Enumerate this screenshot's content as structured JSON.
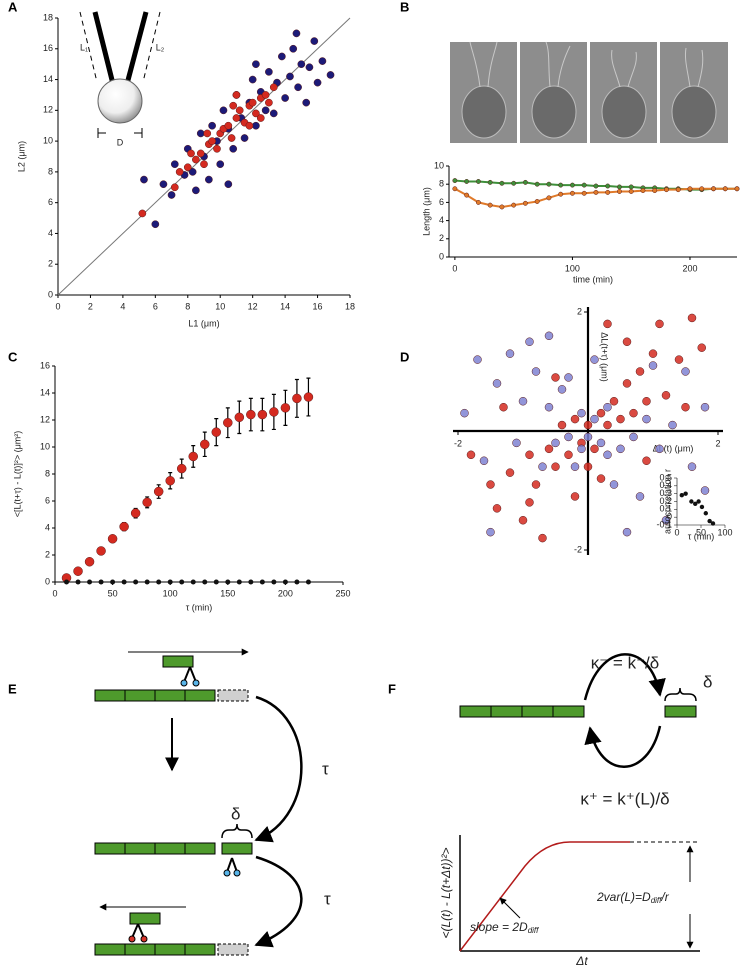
{
  "panel_labels": [
    "A",
    "B",
    "C",
    "D",
    "E",
    "F"
  ],
  "chart_data": [
    {
      "type": "scatter",
      "x_label": "L1 (μm)",
      "y_label": "L2 (μm)",
      "xlim": [
        0,
        18
      ],
      "ylim": [
        0,
        18
      ],
      "xticks": [
        0,
        2,
        4,
        6,
        8,
        10,
        12,
        14,
        16,
        18
      ],
      "yticks": [
        0,
        2,
        4,
        6,
        8,
        10,
        12,
        14,
        16,
        18
      ],
      "diagonal": true,
      "annotations": [
        "L₁",
        "L₂",
        "D"
      ],
      "series": [
        {
          "color": "#1c1a78",
          "x": [
            6.5,
            7.0,
            7.2,
            7.8,
            8.0,
            8.3,
            8.5,
            8.8,
            9.0,
            9.3,
            9.5,
            9.8,
            10.0,
            10.2,
            10.5,
            10.8,
            11.0,
            11.3,
            11.5,
            11.8,
            12.0,
            12.2,
            12.5,
            12.8,
            13.0,
            13.3,
            13.5,
            13.8,
            14.0,
            14.3,
            14.5,
            14.8,
            15.0,
            15.3,
            15.5,
            15.8,
            16.0,
            16.3,
            16.8,
            6.0,
            5.3,
            10.5,
            14.7,
            12.2
          ],
          "values": [
            7.2,
            6.5,
            8.5,
            7.8,
            9.5,
            8.0,
            6.8,
            10.5,
            9.0,
            7.5,
            11.0,
            10.0,
            8.5,
            12.0,
            10.8,
            9.5,
            13.0,
            11.5,
            10.2,
            12.5,
            14.0,
            11.0,
            13.2,
            12.0,
            14.5,
            11.8,
            13.8,
            15.5,
            12.8,
            14.2,
            16.0,
            13.5,
            15.0,
            12.5,
            14.8,
            16.5,
            13.8,
            15.2,
            14.3,
            4.6,
            7.5,
            7.2,
            17.0,
            15.0
          ]
        },
        {
          "color": "#d42a20",
          "x": [
            5.2,
            7.5,
            8.0,
            8.5,
            8.8,
            9.0,
            9.3,
            9.5,
            9.8,
            10.0,
            10.2,
            10.5,
            10.7,
            11.0,
            11.2,
            11.5,
            11.8,
            12.0,
            12.2,
            12.5,
            12.8,
            13.0,
            13.3,
            10.8,
            9.2,
            11.0,
            7.2,
            8.2,
            11.8,
            12.5
          ],
          "values": [
            5.3,
            8.0,
            8.3,
            8.8,
            9.2,
            8.5,
            9.8,
            10.0,
            9.5,
            10.5,
            10.8,
            11.0,
            10.2,
            11.5,
            12.0,
            11.2,
            12.3,
            12.5,
            11.8,
            12.8,
            13.0,
            12.5,
            13.5,
            12.3,
            10.5,
            13.0,
            7.0,
            9.2,
            11.0,
            11.5
          ]
        }
      ]
    },
    {
      "type": "line",
      "x_label": "time (min)",
      "y_label": "Length (μm)",
      "xlim": [
        -5,
        240
      ],
      "ylim": [
        0,
        10
      ],
      "xticks": [
        0,
        100,
        200
      ],
      "yticks": [
        0,
        2,
        4,
        6,
        8,
        10
      ],
      "x": [
        0,
        10,
        20,
        30,
        40,
        50,
        60,
        70,
        80,
        90,
        100,
        110,
        120,
        130,
        140,
        150,
        160,
        170,
        180,
        190,
        200,
        210,
        220,
        230,
        240
      ],
      "series": [
        {
          "color": "#3f8f3a",
          "values": [
            8.4,
            8.3,
            8.3,
            8.2,
            8.1,
            8.1,
            8.2,
            8.0,
            8.0,
            7.9,
            7.9,
            7.9,
            7.8,
            7.8,
            7.7,
            7.7,
            7.6,
            7.6,
            7.5,
            7.5,
            7.4,
            7.4,
            7.5,
            7.5,
            7.5
          ]
        },
        {
          "color": "#e07a2a",
          "values": [
            7.5,
            6.8,
            6.0,
            5.7,
            5.5,
            5.7,
            5.9,
            6.1,
            6.5,
            6.9,
            7.0,
            7.0,
            7.1,
            7.1,
            7.2,
            7.2,
            7.3,
            7.3,
            7.4,
            7.4,
            7.5,
            7.5,
            7.5,
            7.5,
            7.5
          ]
        }
      ]
    },
    {
      "type": "scatter",
      "x_label": "τ  (min)",
      "y_label": "<[L(t+τ) - L(t)]²> (μm²)",
      "xlim": [
        0,
        250
      ],
      "ylim": [
        0,
        16
      ],
      "xticks": [
        0,
        50,
        100,
        150,
        200,
        250
      ],
      "yticks": [
        0,
        2,
        4,
        6,
        8,
        10,
        12,
        14,
        16
      ],
      "x": [
        10,
        20,
        30,
        40,
        50,
        60,
        70,
        80,
        90,
        100,
        110,
        120,
        130,
        140,
        150,
        160,
        170,
        180,
        190,
        200,
        210,
        220
      ],
      "series": [
        {
          "color": "#d42a20",
          "values": [
            0.3,
            0.8,
            1.5,
            2.3,
            3.2,
            4.1,
            5.1,
            5.9,
            6.7,
            7.5,
            8.4,
            9.3,
            10.2,
            11.1,
            11.8,
            12.2,
            12.4,
            12.4,
            12.6,
            12.9,
            13.6,
            13.7
          ],
          "errors": [
            0.1,
            0.1,
            0.1,
            0.15,
            0.2,
            0.3,
            0.35,
            0.4,
            0.5,
            0.6,
            0.7,
            0.8,
            0.9,
            1.0,
            1.1,
            1.2,
            1.2,
            1.2,
            1.3,
            1.3,
            1.4,
            1.4
          ]
        },
        {
          "color": "#111111",
          "values": [
            0,
            0,
            0,
            0,
            0,
            0,
            0,
            0,
            0,
            0,
            0,
            0,
            0,
            0,
            0,
            0,
            0,
            0,
            0,
            0,
            0,
            0
          ]
        }
      ]
    },
    {
      "type": "scatter",
      "x_label": "ΔL(t)  (μm)",
      "y_label": "ΔL(t+τ)  (μm)",
      "xlim": [
        -2,
        2
      ],
      "ylim": [
        -2,
        2
      ],
      "xticks": [
        -2,
        2
      ],
      "yticks": [
        -2,
        2
      ],
      "axes_at_zero": true,
      "series": [
        {
          "color": "#d42a20",
          "x": [
            -1.8,
            -1.5,
            -1.4,
            -1.2,
            -1.0,
            -0.9,
            -0.8,
            -0.7,
            -0.6,
            -0.5,
            -0.4,
            -0.3,
            -0.2,
            -0.1,
            0,
            0.1,
            0.2,
            0.3,
            0.4,
            0.5,
            0.6,
            0.7,
            0.8,
            0.9,
            1.0,
            1.2,
            1.4,
            1.6,
            1.75,
            1.5,
            0.3,
            -0.5,
            0.9,
            -1.3,
            0.2,
            -0.2,
            0.6,
            1.1,
            -0.9,
            0.0
          ],
          "values": [
            -0.4,
            -0.9,
            -1.3,
            -0.7,
            -1.5,
            -0.4,
            -0.9,
            -1.8,
            -0.3,
            -0.6,
            0.1,
            -0.4,
            0.2,
            -0.2,
            0.1,
            -0.3,
            0.3,
            0.1,
            0.5,
            0.2,
            0.8,
            0.3,
            1.0,
            0.5,
            1.3,
            0.6,
            1.2,
            1.9,
            1.4,
            0.4,
            1.8,
            0.9,
            -0.5,
            0.4,
            -0.8,
            -1.1,
            1.5,
            1.8,
            -1.2,
            -0.6
          ]
        },
        {
          "color": "#7f82d2",
          "x": [
            -1.7,
            -1.4,
            -1.2,
            -1.0,
            -0.8,
            -0.6,
            -0.4,
            -0.3,
            -0.1,
            0,
            0.1,
            0.2,
            0.3,
            0.5,
            0.7,
            0.9,
            1.1,
            1.3,
            1.6,
            1.8,
            1.2,
            0.8,
            0.4,
            -0.2,
            -0.5,
            -0.7,
            -1.1,
            -1.6,
            -1.9,
            -0.9,
            0.1,
            -0.3,
            1.0,
            1.5,
            -1.5,
            0.6,
            1.8,
            -0.6,
            0.3,
            -0.1
          ],
          "values": [
            1.2,
            0.8,
            1.3,
            0.5,
            1.0,
            0.4,
            0.7,
            -0.1,
            0.3,
            -0.1,
            0.2,
            -0.2,
            0.4,
            -0.3,
            -0.1,
            0.2,
            -0.3,
            0.1,
            -0.6,
            -1.0,
            -1.5,
            -1.1,
            -0.9,
            -0.6,
            -0.2,
            -0.6,
            -0.2,
            -0.5,
            0.3,
            1.5,
            1.2,
            0.9,
            1.1,
            1.0,
            -1.7,
            -1.7,
            0.4,
            1.6,
            -0.4,
            -0.3
          ]
        }
      ]
    },
    {
      "type": "scatter",
      "x_label": "τ (min)",
      "y_label": "autocorrelation r",
      "xlim": [
        0,
        100
      ],
      "ylim": [
        -0.1,
        0.5
      ],
      "xticks": [
        0,
        50,
        100
      ],
      "yticks": [
        -0.1,
        0,
        0.1,
        0.2,
        0.3,
        0.4,
        0.5
      ],
      "series": [
        {
          "color": "#111111",
          "x": [
            10,
            18,
            30,
            38,
            45,
            52,
            60,
            68,
            75
          ],
          "values": [
            0.28,
            0.3,
            0.2,
            0.17,
            0.2,
            0.13,
            0.05,
            -0.05,
            -0.08
          ]
        }
      ]
    }
  ],
  "diagrams": {
    "E": {
      "tau_top": "τ",
      "tau_bottom": "τ",
      "delta": "δ"
    },
    "F": {
      "kappa_minus": "κ⁻ = k⁻/δ",
      "delta": "δ",
      "kappa_plus": "κ⁺ = k⁺(L)/δ",
      "y_label": "<(L(t) - L(t+Δt))²>",
      "slope": {
        "text": "slope = 2D",
        "sub": "diff"
      },
      "variance": {
        "text": "2var(L)=D",
        "sub": "diff",
        "tail": "/r"
      },
      "x_label": "Δt"
    }
  }
}
